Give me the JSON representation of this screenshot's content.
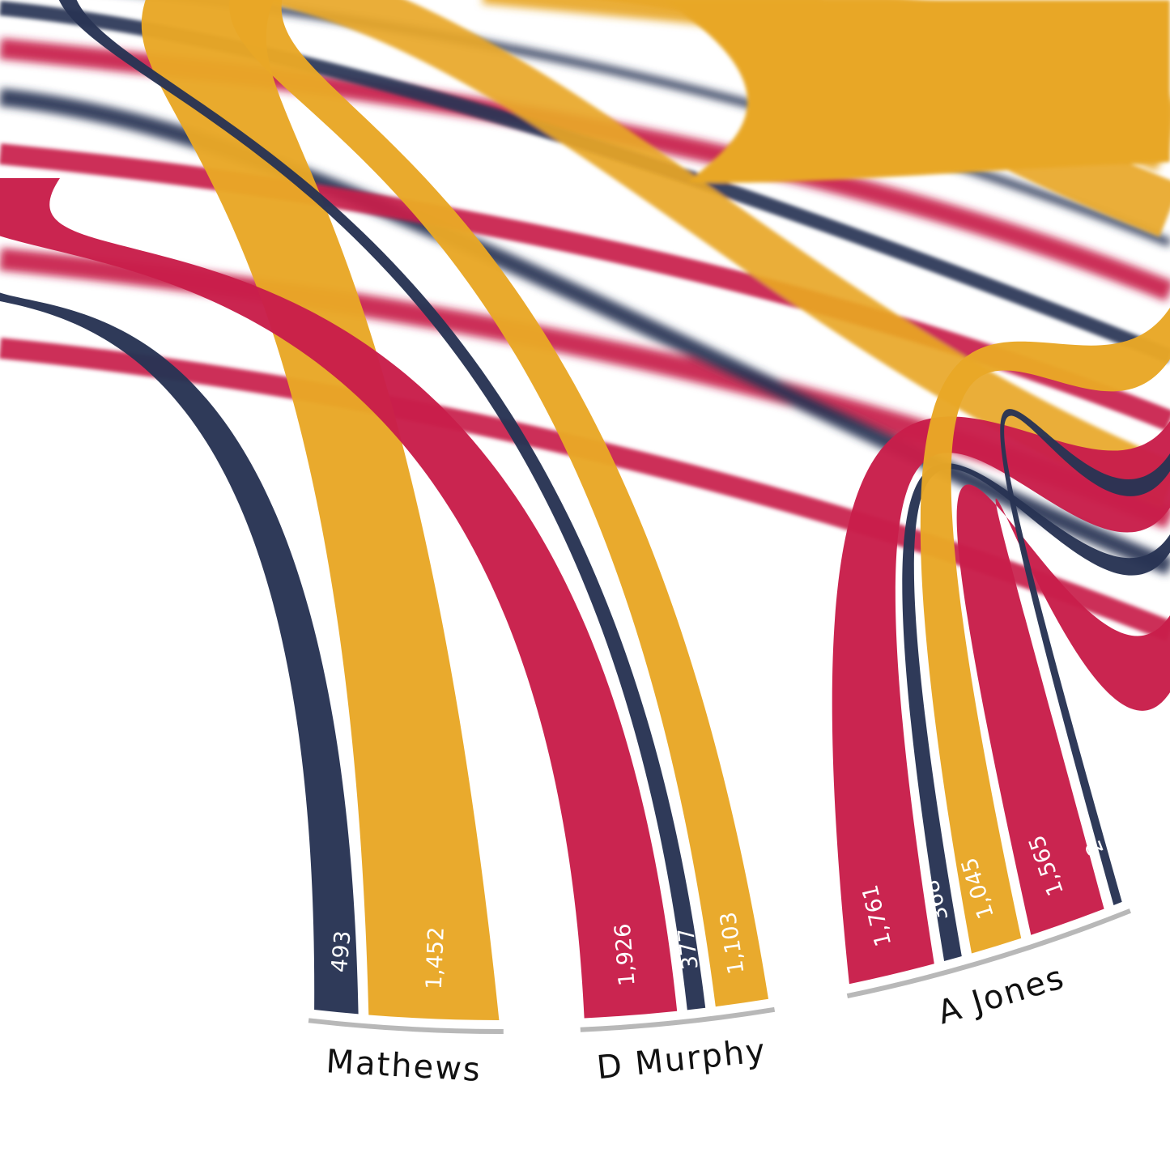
{
  "chart_data": {
    "type": "chord",
    "colors": {
      "navy": "#283454",
      "gold": "#E8A726",
      "crimson": "#C81E4A",
      "arc": "#b8b8b8"
    },
    "groups": [
      {
        "name": "Mathews",
        "values": [
          {
            "value": 493,
            "label": "493",
            "color": "navy"
          },
          {
            "value": 1452,
            "label": "1,452",
            "color": "gold"
          }
        ]
      },
      {
        "name": "D Murphy",
        "values": [
          {
            "value": 1926,
            "label": "1,926",
            "color": "crimson"
          },
          {
            "value": 377,
            "label": "377",
            "color": "navy"
          },
          {
            "value": 1103,
            "label": "1,103",
            "color": "gold"
          }
        ]
      },
      {
        "name": "A Jones",
        "values": [
          {
            "value": 1761,
            "label": "1,761",
            "color": "crimson"
          },
          {
            "value": 368,
            "label": "368",
            "color": "navy"
          },
          {
            "value": 1045,
            "label": "1,045",
            "color": "gold"
          },
          {
            "value": 1565,
            "label": "1,565",
            "color": "crimson"
          },
          {
            "value": 2,
            "label": "2",
            "color": "navy"
          }
        ]
      }
    ]
  }
}
